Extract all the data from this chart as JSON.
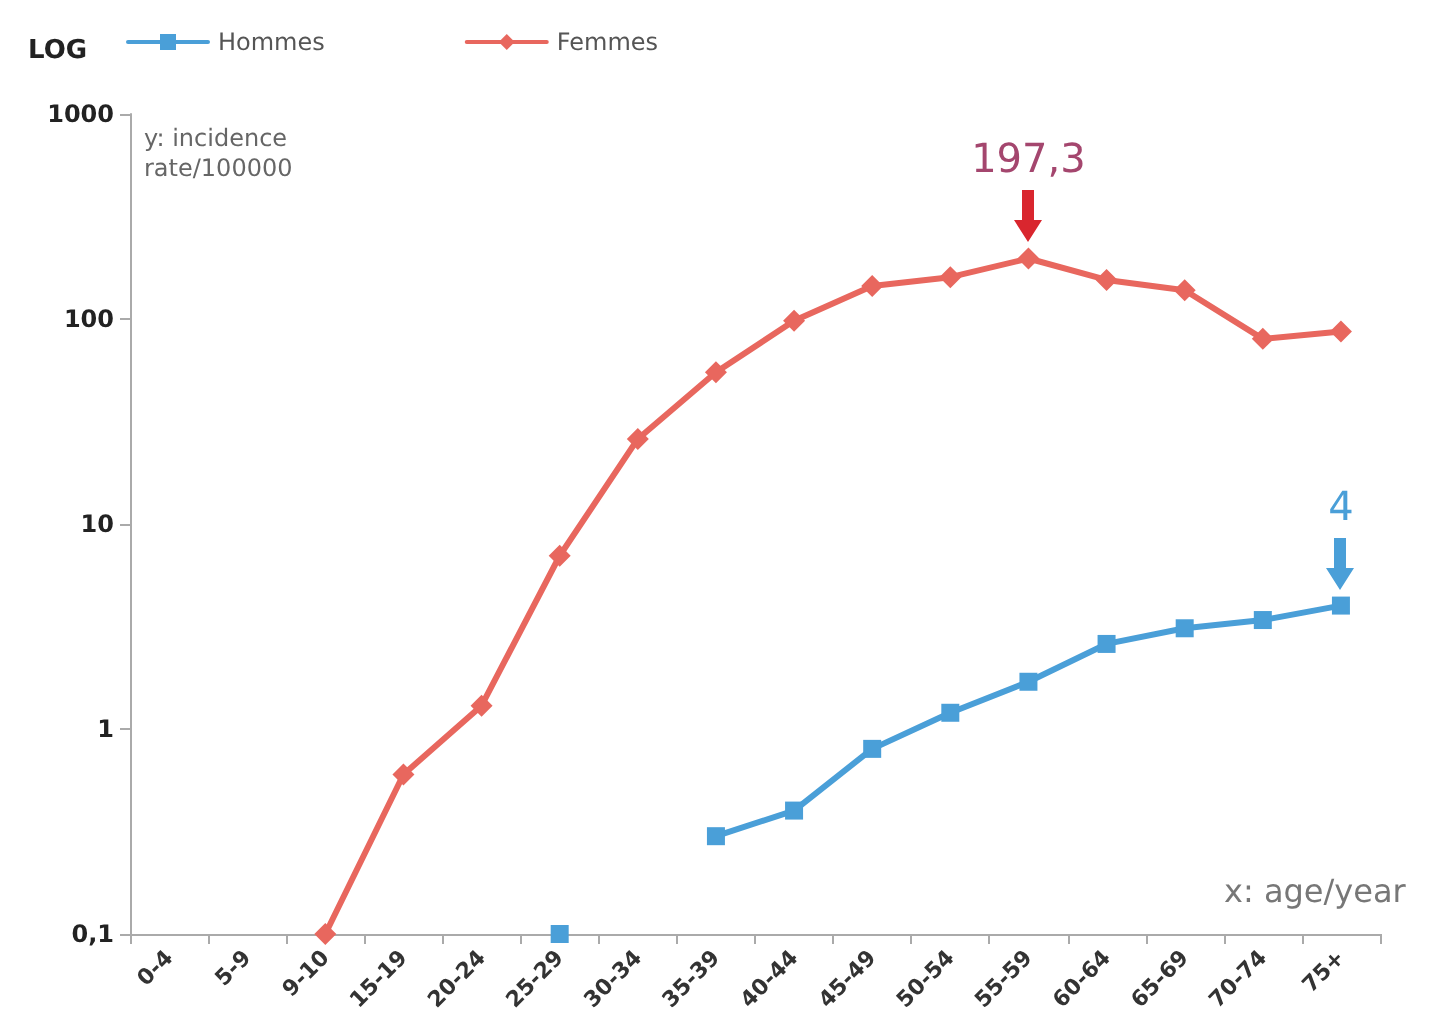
{
  "chart_data": {
    "type": "line",
    "xlabel": "x: age/year",
    "ylabel": "y: incidence rate/100000",
    "annotations": [
      "LOG",
      {
        "text": "197,3",
        "x": "55-59",
        "y": 197.3
      },
      {
        "text": "4",
        "x": "75+",
        "y": 4
      }
    ],
    "categories": [
      "0-4",
      "5-9",
      "9-10",
      "15-19",
      "20-24",
      "25-29",
      "30-34",
      "35-39",
      "40-44",
      "45-49",
      "50-54",
      "55-59",
      "60-64",
      "65-69",
      "70-74",
      "75+"
    ],
    "series": [
      {
        "name": "Hommes",
        "color": "#4a9fd8",
        "marker": "square",
        "values": [
          null,
          null,
          null,
          null,
          null,
          0.1,
          null,
          0.3,
          0.4,
          0.8,
          1.2,
          1.7,
          2.6,
          3.1,
          3.4,
          4
        ]
      },
      {
        "name": "Femmes",
        "color": "#e8675e",
        "marker": "diamond",
        "values": [
          null,
          null,
          0.1,
          0.6,
          1.3,
          7,
          26,
          55,
          98,
          145,
          160,
          197.3,
          155,
          138,
          80,
          87
        ]
      }
    ],
    "log": "y",
    "ylim": [
      0.1,
      1000
    ],
    "yticks": [
      {
        "value": 0.1,
        "label": "0,1"
      },
      1,
      10,
      100,
      1000
    ],
    "grid": false,
    "legend": "top left",
    "line_style": "solid"
  }
}
